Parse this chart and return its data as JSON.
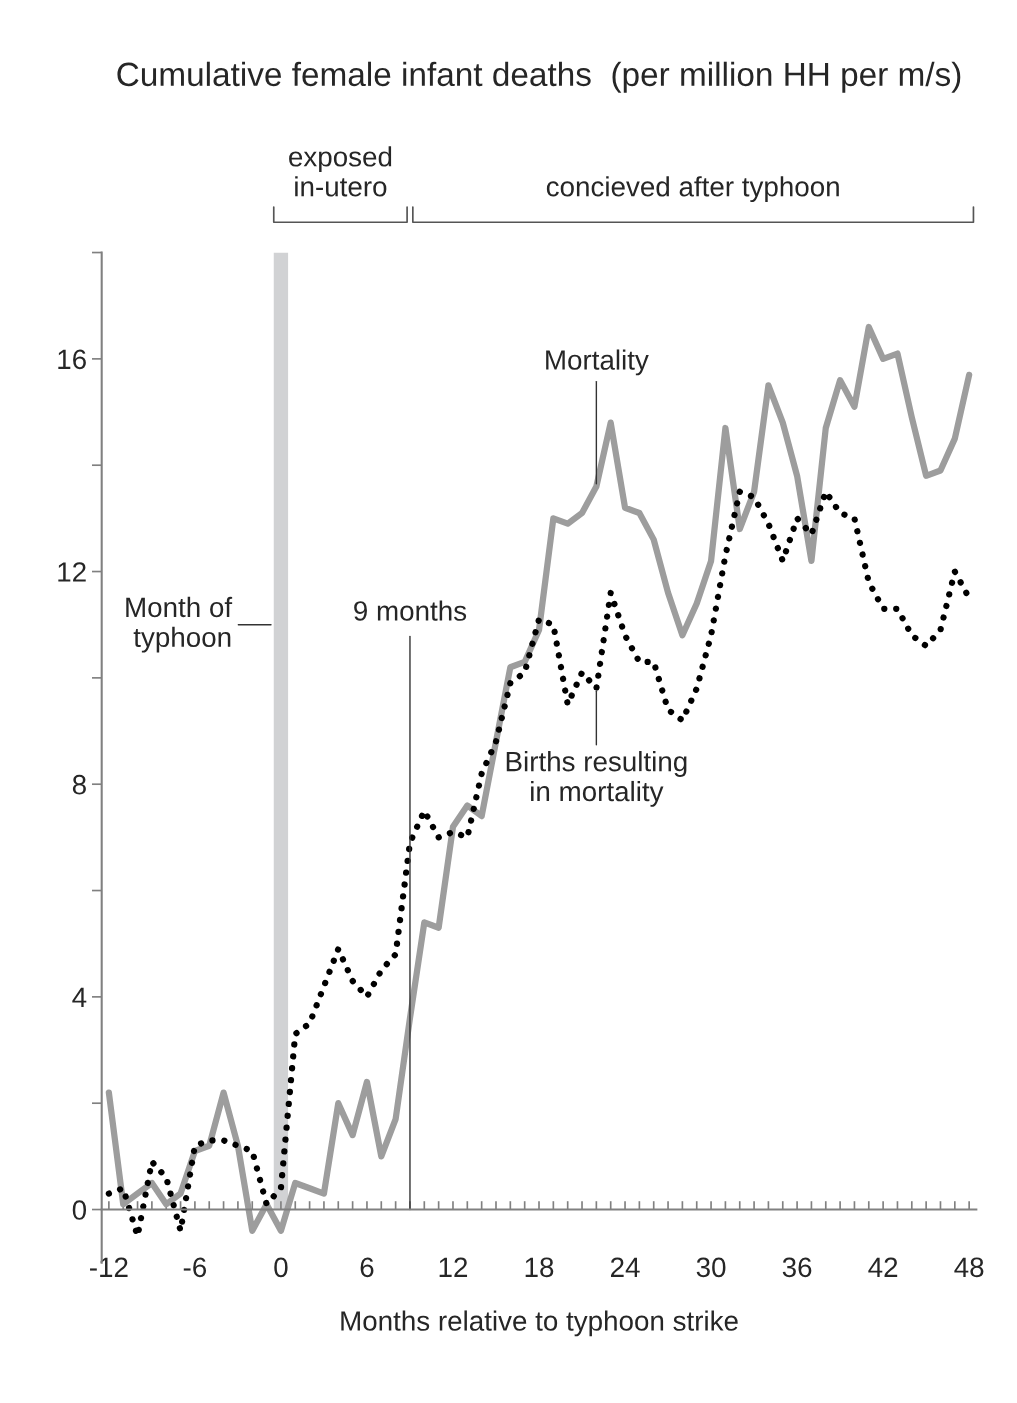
{
  "chart_data": {
    "type": "line",
    "title": "Cumulative female infant deaths  (per million HH per m/s)",
    "xlabel": "Months relative to typhoon strike",
    "x": [
      -12,
      -11,
      -10,
      -9,
      -8,
      -7,
      -6,
      -5,
      -4,
      -3,
      -2,
      -1,
      0,
      1,
      2,
      3,
      4,
      5,
      6,
      7,
      8,
      9,
      10,
      11,
      12,
      13,
      14,
      15,
      16,
      17,
      18,
      19,
      20,
      21,
      22,
      23,
      24,
      25,
      26,
      27,
      28,
      29,
      30,
      31,
      32,
      33,
      34,
      35,
      36,
      37,
      38,
      39,
      40,
      41,
      42,
      43,
      44,
      45,
      46,
      47,
      48
    ],
    "series": [
      {
        "color": "#9d9d9d",
        "line_style": "solid",
        "values": [
          2.2,
          0.1,
          0.3,
          0.5,
          0.1,
          0.3,
          1.1,
          1.2,
          2.2,
          1.2,
          -0.4,
          0.1,
          -0.4,
          0.5,
          0.4,
          0.3,
          2.0,
          1.4,
          2.4,
          1.0,
          1.7,
          3.6,
          5.4,
          5.3,
          7.2,
          7.6,
          7.4,
          8.8,
          10.2,
          10.3,
          10.9,
          13.0,
          12.9,
          13.1,
          13.6,
          14.8,
          13.2,
          13.1,
          12.6,
          11.6,
          10.8,
          11.4,
          12.2,
          14.7,
          12.8,
          13.5,
          15.5,
          14.8,
          13.8,
          12.2,
          14.7,
          15.6,
          15.1,
          16.6,
          16.0,
          16.1,
          14.9,
          13.8,
          13.9,
          14.5,
          15.7
        ]
      },
      {
        "color": "#000000",
        "line_style": "dotted",
        "values": [
          0.3,
          0.4,
          -0.5,
          0.9,
          0.6,
          -0.4,
          1.2,
          1.3,
          1.3,
          1.2,
          1.1,
          0.1,
          0.4,
          3.3,
          3.5,
          4.2,
          4.9,
          4.3,
          4.0,
          4.5,
          4.8,
          6.9,
          7.5,
          7.0,
          7.1,
          7.0,
          8.2,
          8.8,
          9.9,
          10.1,
          11.1,
          11.0,
          9.5,
          10.1,
          9.8,
          11.6,
          10.8,
          10.3,
          10.3,
          9.4,
          9.2,
          9.8,
          10.8,
          12.3,
          13.5,
          13.4,
          12.9,
          12.2,
          13.0,
          12.7,
          13.5,
          13.1,
          13.0,
          11.8,
          11.3,
          11.3,
          10.8,
          10.6,
          10.9,
          12.0,
          11.5
        ]
      }
    ],
    "xlim": [
      -12.5,
      48.5
    ],
    "xticks": [
      -12,
      -6,
      0,
      6,
      12,
      18,
      24,
      30,
      36,
      42,
      48,
      {
        "value": -11,
        "label": null
      },
      {
        "value": -10,
        "label": null
      },
      {
        "value": -9,
        "label": null
      },
      {
        "value": -8,
        "label": null
      },
      {
        "value": -7,
        "label": null
      },
      {
        "value": -5,
        "label": null
      },
      {
        "value": -4,
        "label": null
      },
      {
        "value": -3,
        "label": null
      },
      {
        "value": -2,
        "label": null
      },
      {
        "value": -1,
        "label": null
      },
      {
        "value": 1,
        "label": null
      },
      {
        "value": 2,
        "label": null
      },
      {
        "value": 3,
        "label": null
      },
      {
        "value": 4,
        "label": null
      },
      {
        "value": 5,
        "label": null
      },
      {
        "value": 7,
        "label": null
      },
      {
        "value": 8,
        "label": null
      },
      {
        "value": 9,
        "label": null
      },
      {
        "value": 10,
        "label": null
      },
      {
        "value": 11,
        "label": null
      },
      {
        "value": 13,
        "label": null
      },
      {
        "value": 14,
        "label": null
      },
      {
        "value": 15,
        "label": null
      },
      {
        "value": 16,
        "label": null
      },
      {
        "value": 17,
        "label": null
      },
      {
        "value": 19,
        "label": null
      },
      {
        "value": 20,
        "label": null
      },
      {
        "value": 21,
        "label": null
      },
      {
        "value": 22,
        "label": null
      },
      {
        "value": 23,
        "label": null
      },
      {
        "value": 25,
        "label": null
      },
      {
        "value": 26,
        "label": null
      },
      {
        "value": 27,
        "label": null
      },
      {
        "value": 28,
        "label": null
      },
      {
        "value": 29,
        "label": null
      },
      {
        "value": 31,
        "label": null
      },
      {
        "value": 32,
        "label": null
      },
      {
        "value": 33,
        "label": null
      },
      {
        "value": 34,
        "label": null
      },
      {
        "value": 35,
        "label": null
      },
      {
        "value": 37,
        "label": null
      },
      {
        "value": 38,
        "label": null
      },
      {
        "value": 39,
        "label": null
      },
      {
        "value": 40,
        "label": null
      },
      {
        "value": 41,
        "label": null
      },
      {
        "value": 43,
        "label": null
      },
      {
        "value": 44,
        "label": null
      },
      {
        "value": 45,
        "label": null
      },
      {
        "value": 46,
        "label": null
      },
      {
        "value": 47,
        "label": null
      }
    ],
    "ylim": [
      -1,
      18
    ],
    "yticks": [
      0,
      4,
      8,
      12,
      16,
      {
        "value": 2,
        "label": null
      },
      {
        "value": 6,
        "label": null
      },
      {
        "value": 10,
        "label": null
      },
      {
        "value": 14,
        "label": null
      },
      {
        "value": 18,
        "label": null
      }
    ],
    "grid": false,
    "legend": false,
    "bands": [
      {
        "axis": "x",
        "from": -0.5,
        "to": 0.5,
        "label": "Month of\ntyphoon",
        "color": "#d1d2d4"
      }
    ],
    "ref_lines": [
      {
        "axis": "x",
        "value": 9,
        "label": "9 months",
        "color": "#333333",
        "line_style": "solid"
      }
    ],
    "annotations": [
      "exposed\nin-utero",
      "concieved after typhoon",
      {
        "text": "Mortality",
        "x": 22,
        "y": 13.6
      },
      {
        "text": "Births resulting\nin mortality",
        "x": 22,
        "y": 9.8
      }
    ]
  }
}
